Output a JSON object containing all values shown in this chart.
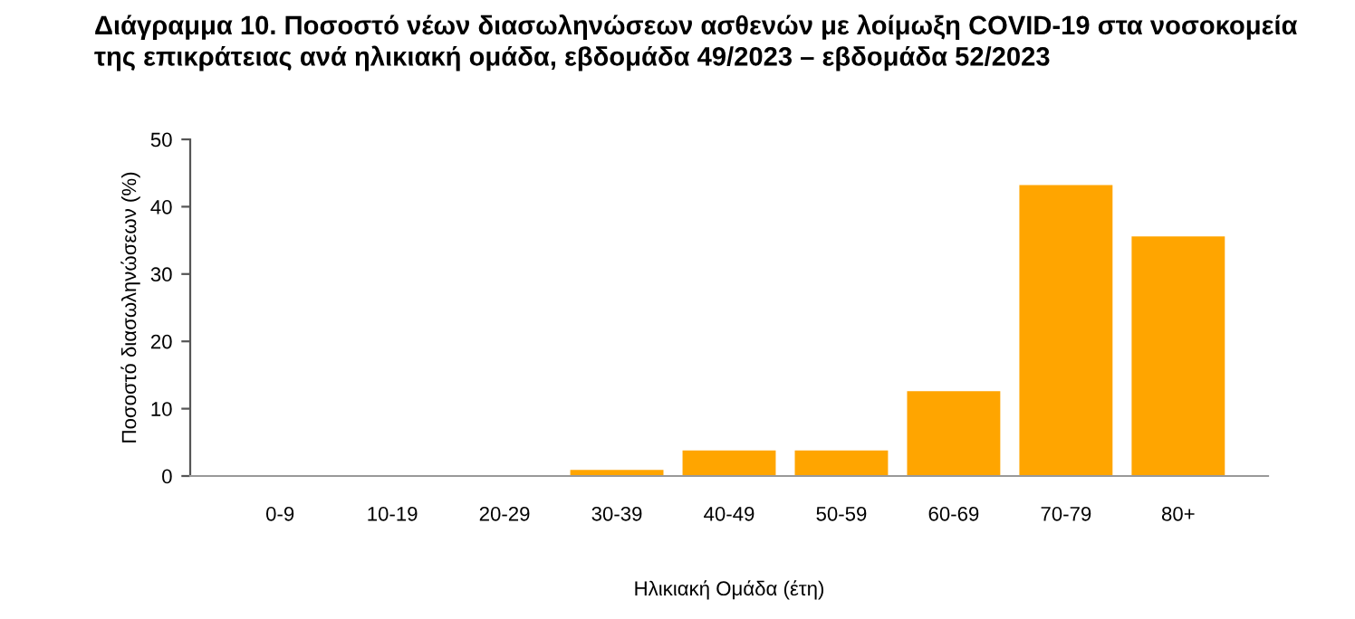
{
  "chart_data": {
    "type": "bar",
    "title": "Διάγραμμα 10. Ποσοστό νέων διασωληνώσεων ασθενών με λοίμωξη COVID-19 στα νοσοκομεία\nτης επικράτειας ανά ηλικιακή ομάδα, εβδομάδα 49/2023 – εβδομάδα 52/2023",
    "xlabel": "Ηλικιακή Ομάδα (έτη)",
    "ylabel": "Ποσοστό διασωληνώσεων (%)",
    "categories": [
      "0-9",
      "10-19",
      "20-29",
      "30-39",
      "40-49",
      "50-59",
      "60-69",
      "70-79",
      "80+"
    ],
    "values": [
      0,
      0,
      0,
      0.9,
      3.8,
      3.8,
      12.6,
      43.2,
      35.6
    ],
    "color": "#ffa500",
    "ylim": [
      0,
      50
    ],
    "yticks": [
      0,
      10,
      20,
      30,
      40,
      50
    ],
    "grid": false
  }
}
